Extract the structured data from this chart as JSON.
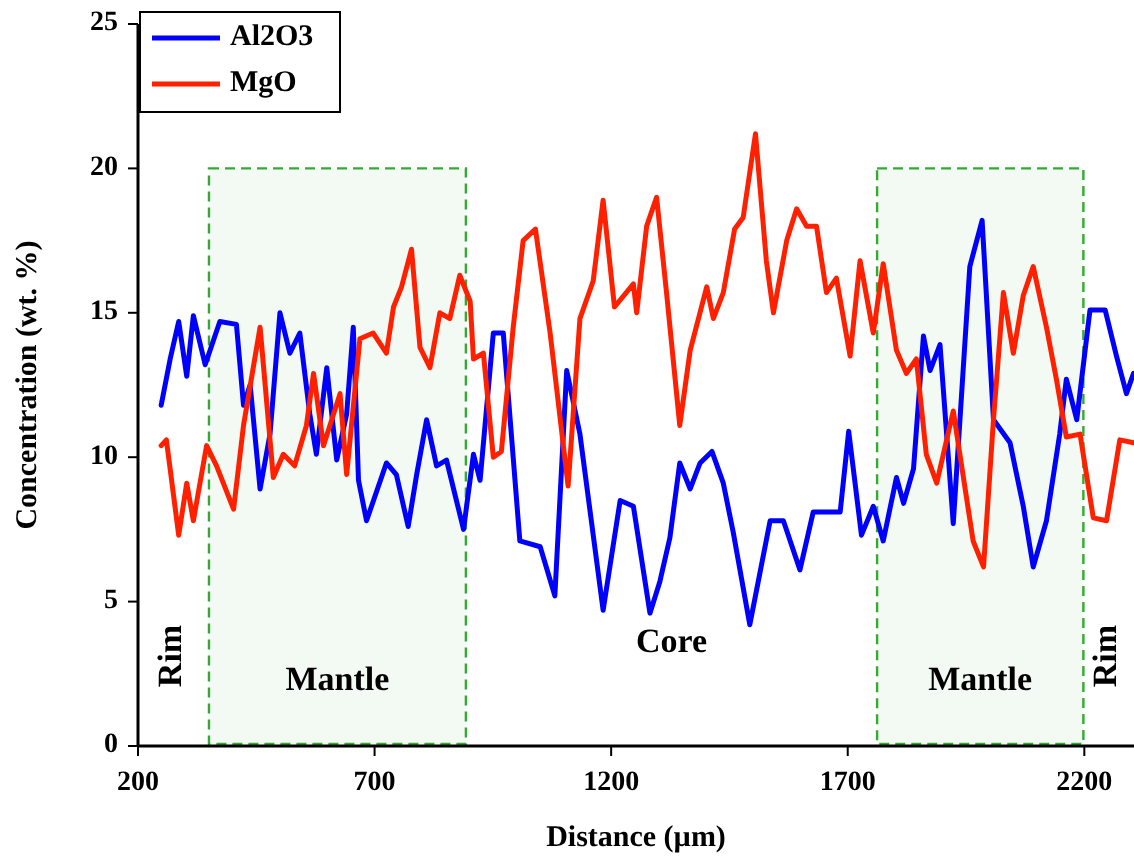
{
  "chart_data": {
    "type": "line",
    "xlabel": "Distance (µm)",
    "ylabel": "Concentration (wt. %)",
    "xlim": [
      200,
      2305
    ],
    "xticks": [
      200,
      700,
      1200,
      1700,
      2200
    ],
    "ylim": [
      0,
      25
    ],
    "yticks": [
      0,
      5,
      10,
      15,
      20,
      25
    ],
    "legend": "top left",
    "grid": false,
    "marker": "none",
    "line_style": "solid",
    "series": [
      {
        "name": "Al2O3",
        "color": "#0000ff",
        "x": [
          249,
          268,
          286,
          303,
          317,
          342,
          373,
          408,
          423,
          437,
          458,
          479,
          500,
          521,
          542,
          563,
          577,
          599,
          620,
          641,
          655,
          666,
          683,
          725,
          746,
          771,
          789,
          810,
          831,
          852,
          888,
          909,
          923,
          951,
          972,
          1007,
          1050,
          1081,
          1106,
          1134,
          1183,
          1219,
          1247,
          1282,
          1303,
          1324,
          1345,
          1367,
          1388,
          1413,
          1437,
          1458,
          1493,
          1536,
          1564,
          1599,
          1627,
          1662,
          1684,
          1702,
          1729,
          1754,
          1775,
          1803,
          1818,
          1839,
          1860,
          1874,
          1895,
          1923,
          1958,
          1984,
          2008,
          2043,
          2071,
          2092,
          2120,
          2148,
          2162,
          2184,
          2212,
          2244,
          2268,
          2289,
          2304
        ],
        "values": [
          11.8,
          13.4,
          14.7,
          12.8,
          14.9,
          13.2,
          14.7,
          14.6,
          11.8,
          12.5,
          8.9,
          10.8,
          15.0,
          13.6,
          14.3,
          11.5,
          10.1,
          13.1,
          9.9,
          11.5,
          14.5,
          9.2,
          7.8,
          9.8,
          9.4,
          7.6,
          9.4,
          11.3,
          9.7,
          9.9,
          7.5,
          10.1,
          9.2,
          14.3,
          14.3,
          7.1,
          6.9,
          5.2,
          13.0,
          10.8,
          4.7,
          8.5,
          8.3,
          4.6,
          5.7,
          7.2,
          9.8,
          8.9,
          9.8,
          10.2,
          9.1,
          7.4,
          4.2,
          7.8,
          7.8,
          6.1,
          8.1,
          8.1,
          8.1,
          10.9,
          7.3,
          8.3,
          7.1,
          9.3,
          8.4,
          9.6,
          14.2,
          13.0,
          13.9,
          7.7,
          16.6,
          18.2,
          11.3,
          10.5,
          8.3,
          6.2,
          7.8,
          10.8,
          12.7,
          11.3,
          15.1,
          15.1,
          13.5,
          12.2,
          12.9
        ]
      },
      {
        "name": "MgO",
        "color": "#ff2000",
        "x": [
          249,
          260,
          286,
          303,
          317,
          345,
          366,
          402,
          423,
          458,
          486,
          507,
          531,
          556,
          571,
          592,
          627,
          641,
          669,
          697,
          725,
          740,
          757,
          778,
          796,
          817,
          838,
          859,
          880,
          902,
          909,
          930,
          951,
          968,
          993,
          1014,
          1040,
          1071,
          1109,
          1134,
          1162,
          1183,
          1207,
          1247,
          1254,
          1275,
          1296,
          1317,
          1345,
          1367,
          1402,
          1416,
          1437,
          1461,
          1479,
          1505,
          1528,
          1543,
          1571,
          1592,
          1613,
          1634,
          1655,
          1676,
          1705,
          1726,
          1754,
          1775,
          1803,
          1824,
          1845,
          1866,
          1888,
          1923,
          1937,
          1965,
          1987,
          2008,
          2029,
          2050,
          2071,
          2092,
          2120,
          2141,
          2162,
          2191,
          2219,
          2247,
          2275,
          2304
        ],
        "values": [
          10.4,
          10.6,
          7.3,
          9.1,
          7.8,
          10.4,
          9.7,
          8.2,
          11.1,
          14.5,
          9.3,
          10.1,
          9.7,
          11.1,
          12.9,
          10.4,
          12.2,
          9.4,
          14.1,
          14.3,
          13.6,
          15.2,
          15.9,
          17.2,
          13.8,
          13.1,
          15.0,
          14.8,
          16.3,
          15.4,
          13.4,
          13.6,
          10.0,
          10.2,
          14.5,
          17.5,
          17.9,
          14.3,
          9.0,
          14.8,
          16.1,
          18.9,
          15.2,
          16.0,
          15.0,
          18.0,
          19.0,
          15.7,
          11.1,
          13.7,
          15.9,
          14.8,
          15.7,
          17.9,
          18.3,
          21.2,
          16.8,
          15.0,
          17.5,
          18.6,
          18.0,
          18.0,
          15.7,
          16.2,
          13.5,
          16.8,
          14.3,
          16.7,
          13.7,
          12.9,
          13.4,
          10.1,
          9.1,
          11.6,
          10.1,
          7.1,
          6.2,
          11.3,
          15.7,
          13.6,
          15.6,
          16.6,
          14.5,
          12.7,
          10.7,
          10.8,
          7.9,
          7.8,
          10.6,
          10.5
        ]
      }
    ],
    "bands": [
      {
        "axis": "x",
        "from": 350,
        "to": 893,
        "label": "Mantle",
        "color": "#33aa33"
      },
      {
        "axis": "x",
        "from": 1762,
        "to": 2198,
        "label": "Mantle",
        "color": "#33aa33"
      }
    ],
    "annotations": [
      "Rim",
      "Core",
      "Rim"
    ]
  }
}
